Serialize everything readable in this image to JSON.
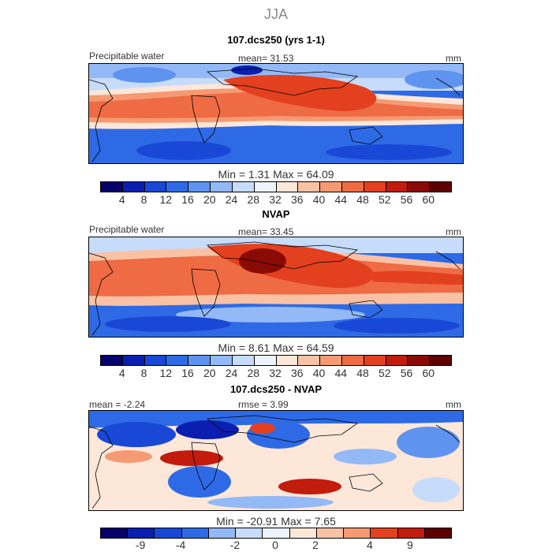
{
  "season": "JJA",
  "panels": [
    {
      "title": "107.dcs250 (yrs 1-1)",
      "var_label": "Precipitable water",
      "mean_text": "mean=   31.53",
      "units": "mm",
      "minmax_text": "Min =    1.31  Max =   64.09",
      "cbar_ticks": [
        "4",
        "8",
        "12",
        "16",
        "20",
        "24",
        "28",
        "32",
        "36",
        "40",
        "44",
        "48",
        "52",
        "56",
        "60"
      ]
    },
    {
      "title": "NVAP",
      "var_label": "Precipitable water",
      "mean_text": "mean=   33.45",
      "units": "mm",
      "minmax_text": "Min =    8.61  Max =   64.59",
      "cbar_ticks": [
        "4",
        "8",
        "12",
        "16",
        "20",
        "24",
        "28",
        "32",
        "36",
        "40",
        "44",
        "48",
        "52",
        "56",
        "60"
      ]
    },
    {
      "title": "107.dcs250 - NVAP",
      "mean_text": "mean =  -2.24",
      "rmse_text": "rmse =    3.99",
      "units": "mm",
      "minmax_text": "Min = -20.91  Max =    7.65",
      "cbar_ticks": [
        "-9",
        "-4",
        "-2",
        "0",
        "2",
        "4",
        "9"
      ]
    }
  ],
  "colors": {
    "abs_scale": [
      "#08006b",
      "#0a1fb0",
      "#1a48d6",
      "#2f6ae6",
      "#5f93f0",
      "#93b9f7",
      "#c7dcfb",
      "#eef4fe",
      "#fde7d9",
      "#f9c2a5",
      "#f59a73",
      "#ee6b44",
      "#e3401f",
      "#c21c0c",
      "#8a0a05",
      "#5e0000"
    ],
    "diff_scale": [
      "#08006b",
      "#0a1fb0",
      "#1a48d6",
      "#2f6ae6",
      "#93b9f7",
      "#c7dcfb",
      "#eef4fe",
      "#fde7d9",
      "#f9c2a5",
      "#f59a73",
      "#e3401f",
      "#c21c0c",
      "#5e0000"
    ]
  }
}
